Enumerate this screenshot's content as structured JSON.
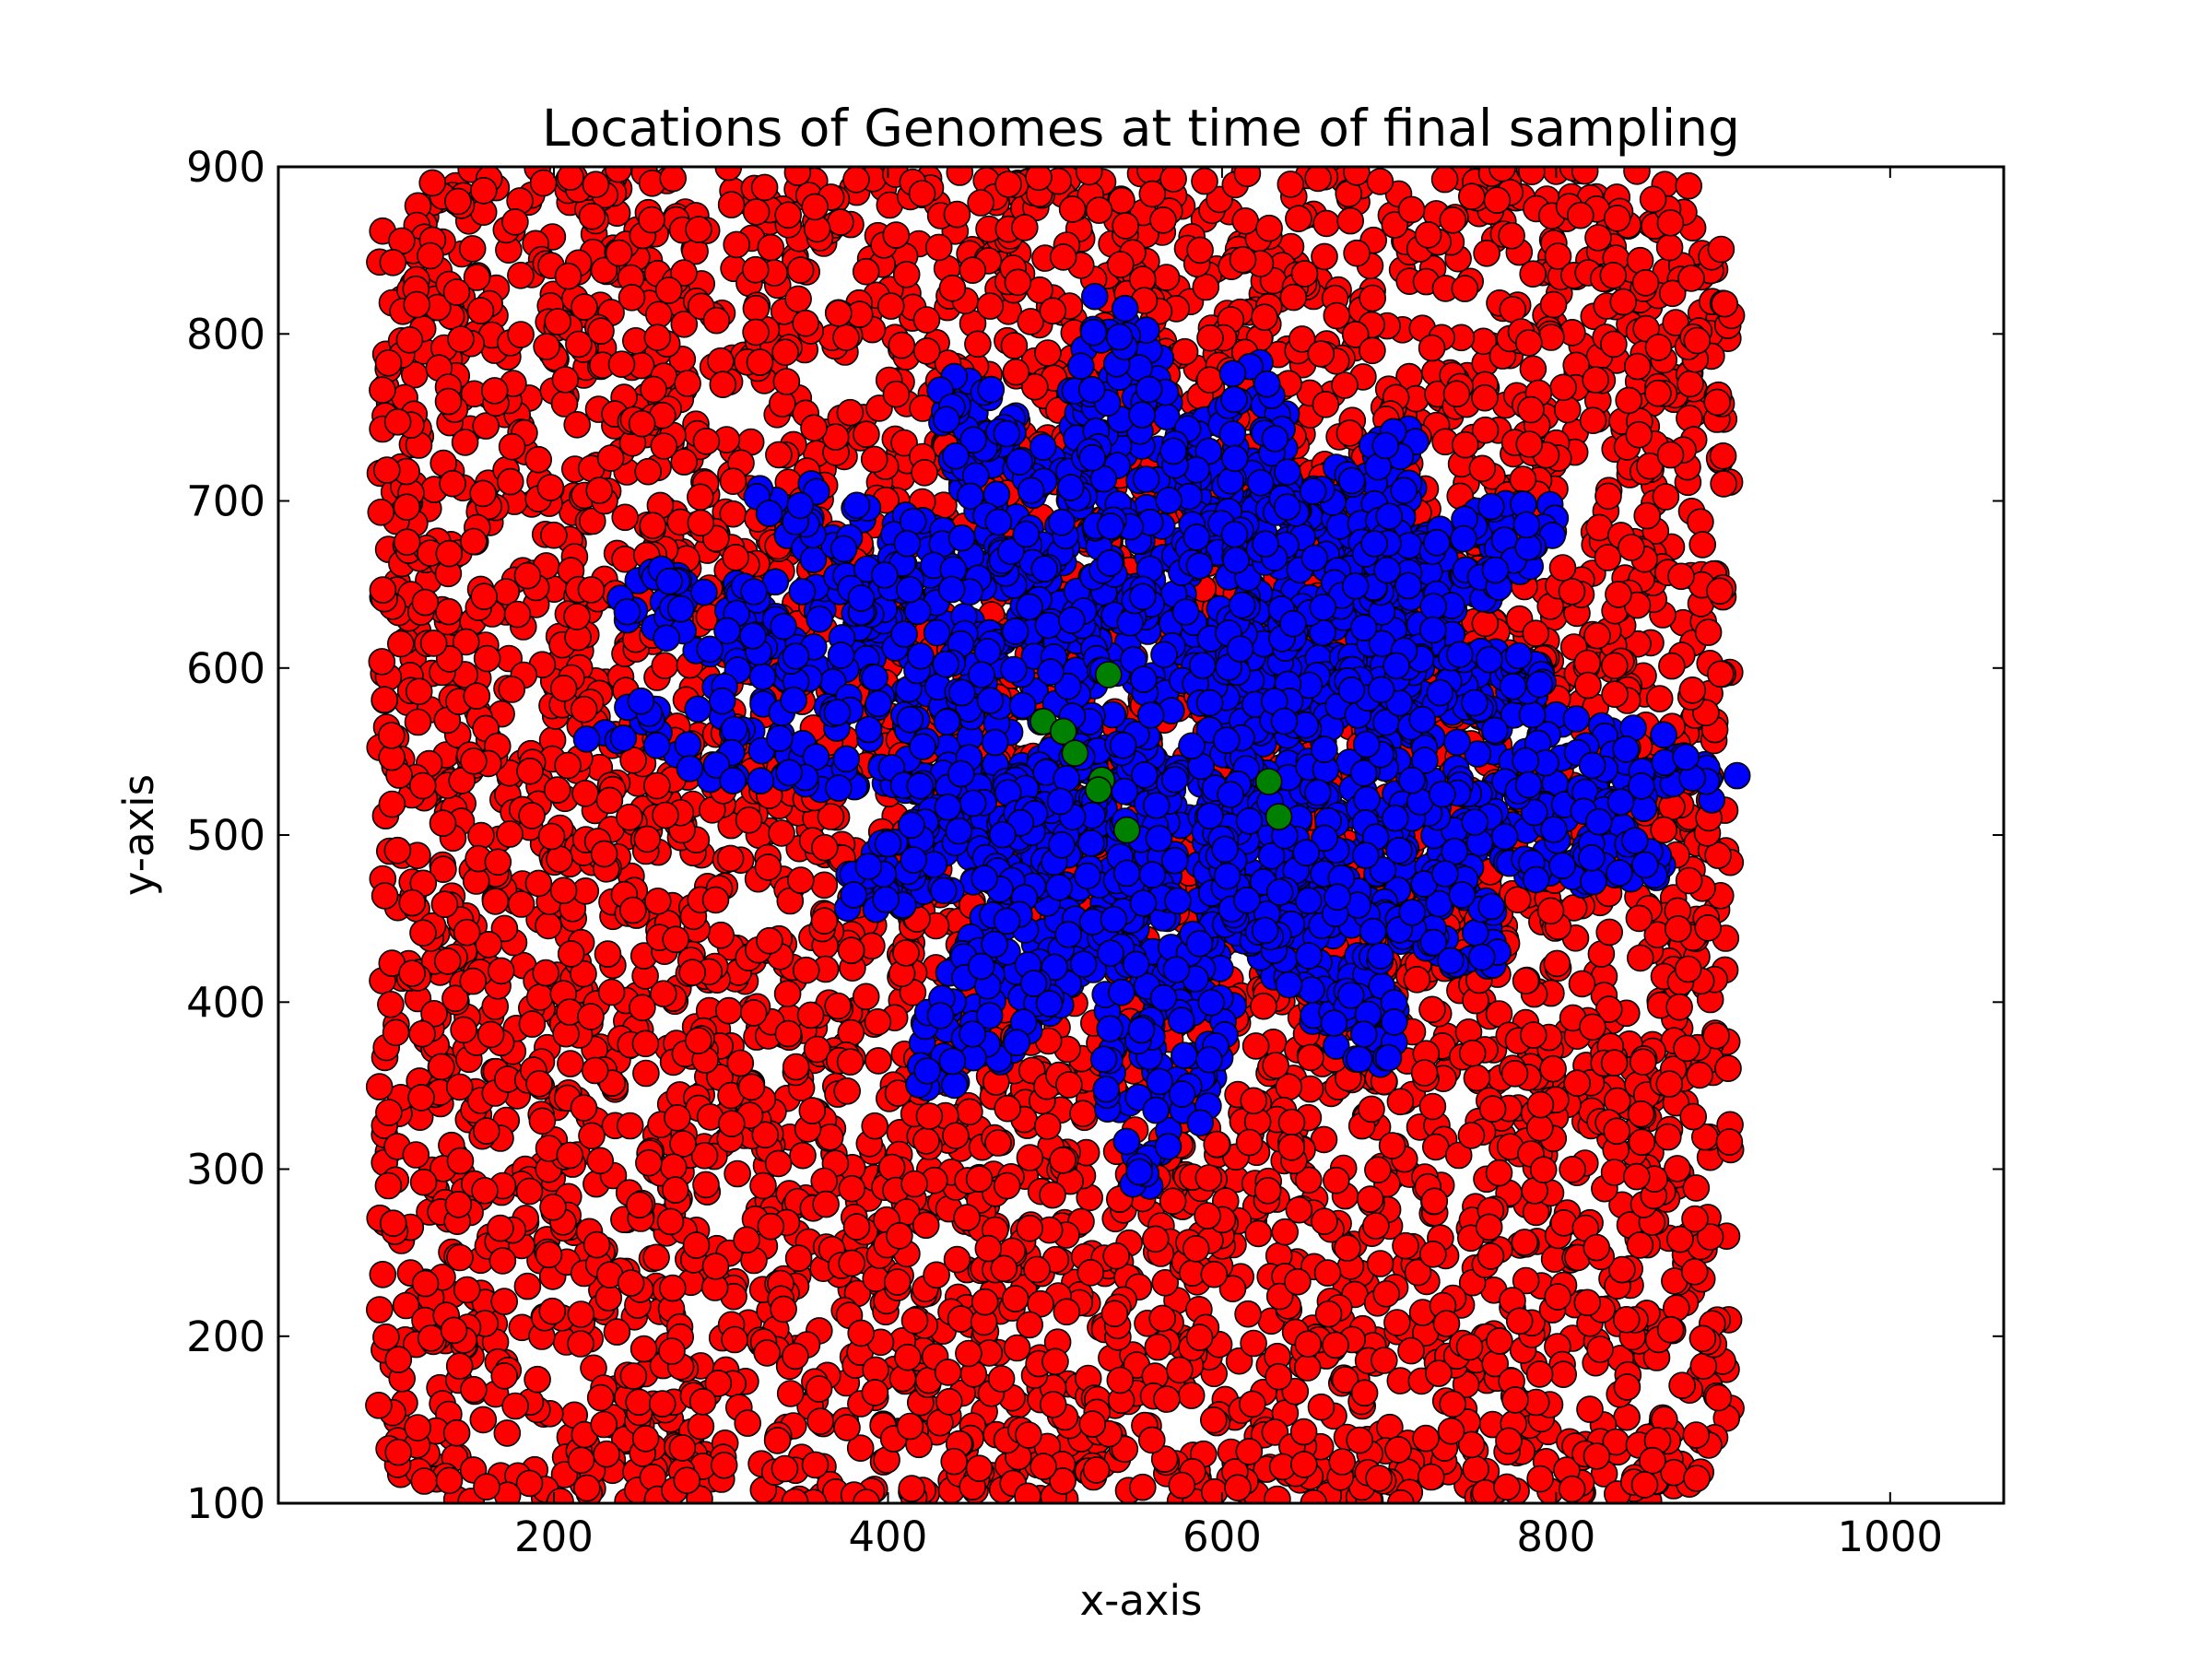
{
  "chart_data": {
    "type": "scatter",
    "title": "Locations of Genomes at time of final sampling",
    "xlabel": "x-axis",
    "ylabel": "y-axis",
    "xlim": [
      35,
      1068
    ],
    "ylim": [
      100,
      900
    ],
    "xticks": [
      200,
      400,
      600,
      800,
      1000
    ],
    "yticks": [
      100,
      200,
      300,
      400,
      500,
      600,
      700,
      800,
      900
    ],
    "grid": false,
    "legend": "none",
    "colors": {
      "red": "#ff0000",
      "blue": "#0000ff",
      "green": "#008000",
      "edge": "#000000"
    },
    "series": [
      {
        "color": "#ff0000",
        "region": {
          "x": [
            95,
            905
          ],
          "y": [
            100,
            900
          ],
          "corner_radius": 50
        },
        "approx_points": 5200,
        "distribution": "dense uniform fill of the square arena; layered beneath the blue colony"
      },
      {
        "color": "#0000ff",
        "center": [
          585,
          560
        ],
        "radius_min": 130,
        "radius_max": 300,
        "approx_points": 2600,
        "distribution": "dense colony with radial lobes (fingering growth)",
        "lobes": [
          {
            "angle_deg": 100,
            "reach": 315
          },
          {
            "angle_deg": 83,
            "reach": 265
          },
          {
            "angle_deg": 60,
            "reach": 245
          },
          {
            "angle_deg": 38,
            "reach": 265
          },
          {
            "angle_deg": 12,
            "reach": 205
          },
          {
            "angle_deg": -5,
            "reach": 320
          },
          {
            "angle_deg": -20,
            "reach": 285
          },
          {
            "angle_deg": -42,
            "reach": 250
          },
          {
            "angle_deg": -65,
            "reach": 255
          },
          {
            "angle_deg": -95,
            "reach": 320
          },
          {
            "angle_deg": -122,
            "reach": 300
          },
          {
            "angle_deg": -150,
            "reach": 235
          },
          {
            "angle_deg": 180,
            "reach": 355
          },
          {
            "angle_deg": 163,
            "reach": 355
          },
          {
            "angle_deg": 145,
            "reach": 305
          },
          {
            "angle_deg": 120,
            "reach": 290
          }
        ]
      },
      {
        "color": "#008000",
        "points": [
          {
            "x": 493,
            "y": 568
          },
          {
            "x": 505,
            "y": 562
          },
          {
            "x": 528,
            "y": 533
          },
          {
            "x": 532,
            "y": 596
          },
          {
            "x": 526,
            "y": 527
          },
          {
            "x": 543,
            "y": 503
          },
          {
            "x": 628,
            "y": 532
          },
          {
            "x": 634,
            "y": 511
          },
          {
            "x": 512,
            "y": 549
          }
        ]
      }
    ]
  }
}
